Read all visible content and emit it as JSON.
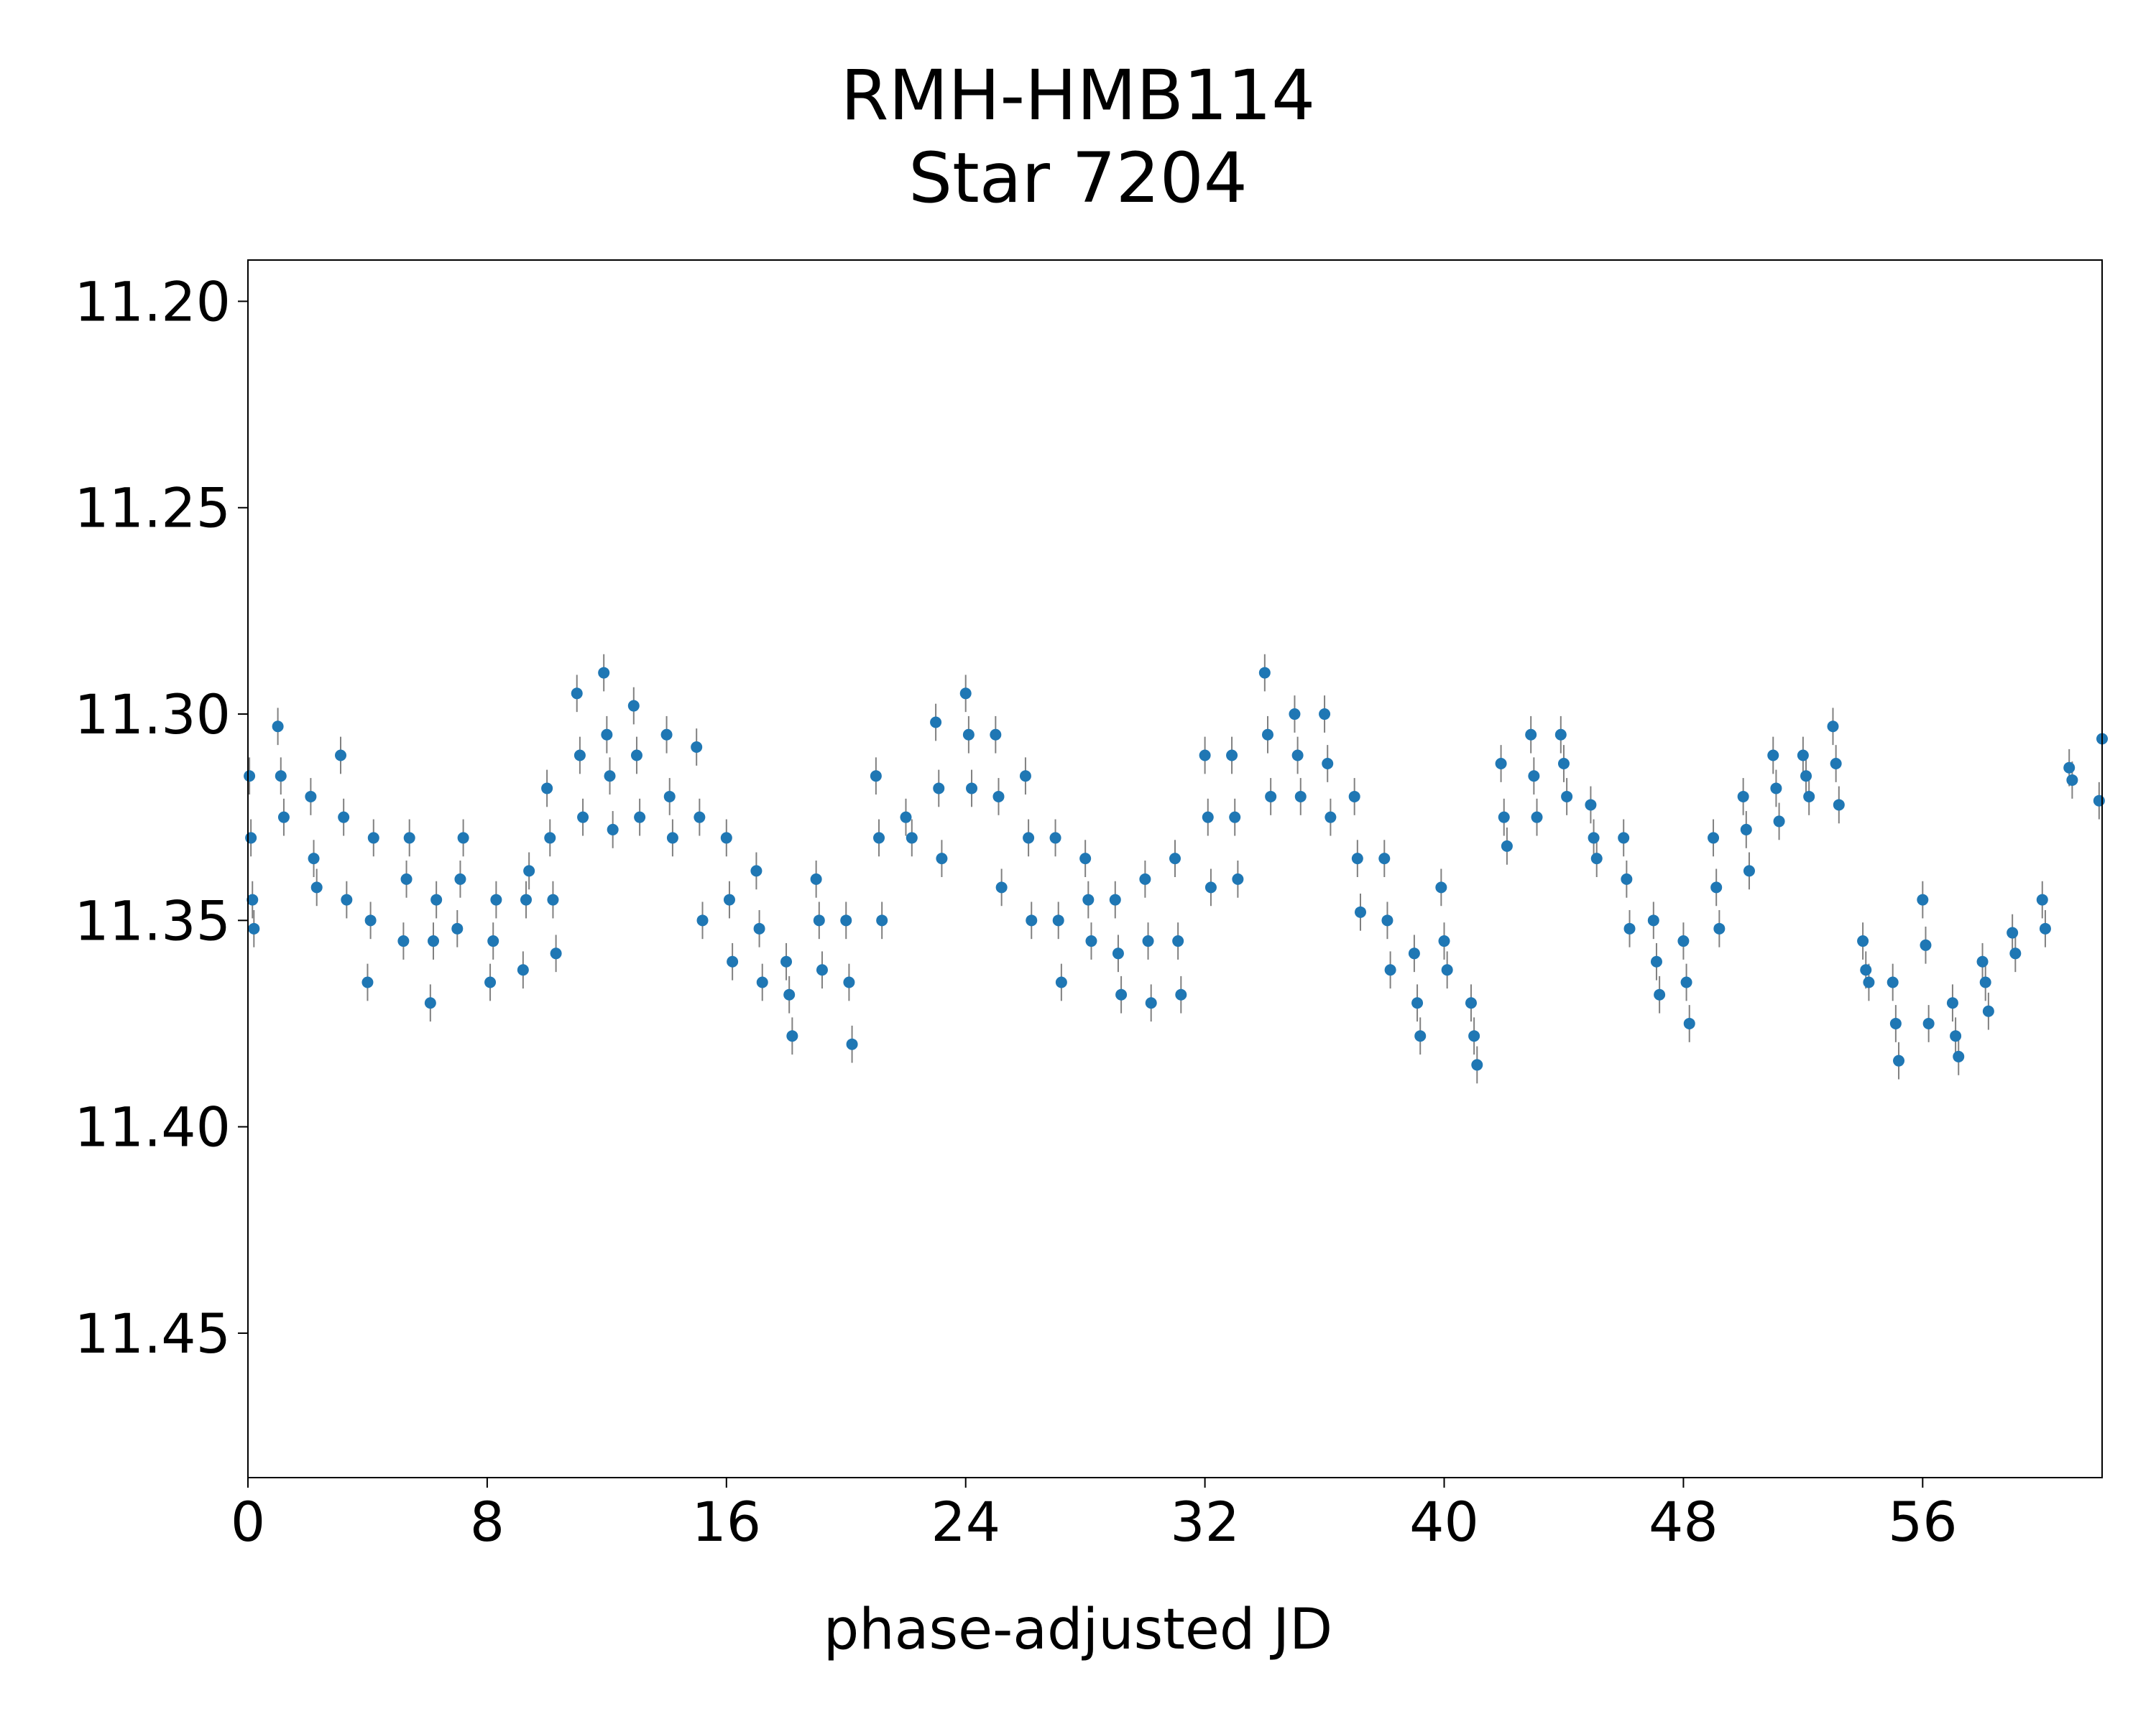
{
  "chart_data": {
    "type": "scatter",
    "title": "RMH-HMB114",
    "subtitle": "Star 7204",
    "xlabel": "phase-adjusted JD",
    "ylabel": "",
    "xlim": [
      0,
      62
    ],
    "ylim": [
      11.485,
      11.19
    ],
    "y_inverted": true,
    "xticks": [
      0,
      8,
      16,
      24,
      32,
      40,
      48,
      56
    ],
    "yticks": [
      11.2,
      11.25,
      11.3,
      11.35,
      11.4,
      11.45
    ],
    "ytick_labels": [
      "11.20",
      "11.25",
      "11.30",
      "11.35",
      "11.40",
      "11.45"
    ],
    "grid": false,
    "legend": "none",
    "marker_color": "#1f77b4",
    "errorbar_color": "#808080",
    "series": [
      {
        "points": [
          [
            0.05,
            11.315
          ],
          [
            0.1,
            11.33
          ],
          [
            0.15,
            11.345
          ],
          [
            0.2,
            11.352
          ],
          [
            1.0,
            11.303
          ],
          [
            1.1,
            11.315
          ],
          [
            1.2,
            11.325
          ],
          [
            2.1,
            11.32
          ],
          [
            2.2,
            11.335
          ],
          [
            2.3,
            11.342
          ],
          [
            3.1,
            11.31
          ],
          [
            3.2,
            11.325
          ],
          [
            3.3,
            11.345
          ],
          [
            4.0,
            11.365
          ],
          [
            4.1,
            11.35
          ],
          [
            4.2,
            11.33
          ],
          [
            5.2,
            11.355
          ],
          [
            5.3,
            11.34
          ],
          [
            5.4,
            11.33
          ],
          [
            6.1,
            11.37
          ],
          [
            6.2,
            11.355
          ],
          [
            6.3,
            11.345
          ],
          [
            7.0,
            11.352
          ],
          [
            7.1,
            11.34
          ],
          [
            7.2,
            11.33
          ],
          [
            8.1,
            11.365
          ],
          [
            8.2,
            11.355
          ],
          [
            8.3,
            11.345
          ],
          [
            9.2,
            11.362
          ],
          [
            9.3,
            11.345
          ],
          [
            9.4,
            11.338
          ],
          [
            10.0,
            11.318
          ],
          [
            10.1,
            11.33
          ],
          [
            10.2,
            11.345
          ],
          [
            10.3,
            11.358
          ],
          [
            11.0,
            11.295
          ],
          [
            11.1,
            11.31
          ],
          [
            11.2,
            11.325
          ],
          [
            11.9,
            11.29
          ],
          [
            12.0,
            11.305
          ],
          [
            12.1,
            11.315
          ],
          [
            12.2,
            11.328
          ],
          [
            12.9,
            11.298
          ],
          [
            13.0,
            11.31
          ],
          [
            13.1,
            11.325
          ],
          [
            14.0,
            11.305
          ],
          [
            14.1,
            11.32
          ],
          [
            14.2,
            11.33
          ],
          [
            15.0,
            11.308
          ],
          [
            15.1,
            11.325
          ],
          [
            15.2,
            11.35
          ],
          [
            16.0,
            11.33
          ],
          [
            16.1,
            11.345
          ],
          [
            16.2,
            11.36
          ],
          [
            17.0,
            11.338
          ],
          [
            17.1,
            11.352
          ],
          [
            17.2,
            11.365
          ],
          [
            18.0,
            11.36
          ],
          [
            18.1,
            11.368
          ],
          [
            18.2,
            11.378
          ],
          [
            19.0,
            11.34
          ],
          [
            19.1,
            11.35
          ],
          [
            19.2,
            11.362
          ],
          [
            20.0,
            11.35
          ],
          [
            20.1,
            11.365
          ],
          [
            20.2,
            11.38
          ],
          [
            21.0,
            11.315
          ],
          [
            21.1,
            11.33
          ],
          [
            21.2,
            11.35
          ],
          [
            22.0,
            11.325
          ],
          [
            22.2,
            11.33
          ],
          [
            23.0,
            11.302
          ],
          [
            23.1,
            11.318
          ],
          [
            23.2,
            11.335
          ],
          [
            24.0,
            11.295
          ],
          [
            24.1,
            11.305
          ],
          [
            24.2,
            11.318
          ],
          [
            25.0,
            11.305
          ],
          [
            25.1,
            11.32
          ],
          [
            25.2,
            11.342
          ],
          [
            26.0,
            11.315
          ],
          [
            26.1,
            11.33
          ],
          [
            26.2,
            11.35
          ],
          [
            27.0,
            11.33
          ],
          [
            27.1,
            11.35
          ],
          [
            27.2,
            11.365
          ],
          [
            28.0,
            11.335
          ],
          [
            28.1,
            11.345
          ],
          [
            28.2,
            11.355
          ],
          [
            29.0,
            11.345
          ],
          [
            29.1,
            11.358
          ],
          [
            29.2,
            11.368
          ],
          [
            30.0,
            11.34
          ],
          [
            30.1,
            11.355
          ],
          [
            30.2,
            11.37
          ],
          [
            31.0,
            11.335
          ],
          [
            31.1,
            11.355
          ],
          [
            31.2,
            11.368
          ],
          [
            32.0,
            11.31
          ],
          [
            32.1,
            11.325
          ],
          [
            32.2,
            11.342
          ],
          [
            32.9,
            11.31
          ],
          [
            33.0,
            11.325
          ],
          [
            33.1,
            11.34
          ],
          [
            34.0,
            11.29
          ],
          [
            34.1,
            11.305
          ],
          [
            34.2,
            11.32
          ],
          [
            35.0,
            11.3
          ],
          [
            35.1,
            11.31
          ],
          [
            35.2,
            11.32
          ],
          [
            36.0,
            11.3
          ],
          [
            36.1,
            11.312
          ],
          [
            36.2,
            11.325
          ],
          [
            37.0,
            11.32
          ],
          [
            37.1,
            11.335
          ],
          [
            37.2,
            11.348
          ],
          [
            38.0,
            11.335
          ],
          [
            38.1,
            11.35
          ],
          [
            38.2,
            11.362
          ],
          [
            39.0,
            11.358
          ],
          [
            39.1,
            11.37
          ],
          [
            39.2,
            11.378
          ],
          [
            39.9,
            11.342
          ],
          [
            40.0,
            11.355
          ],
          [
            40.1,
            11.362
          ],
          [
            40.9,
            11.37
          ],
          [
            41.0,
            11.378
          ],
          [
            41.1,
            11.385
          ],
          [
            41.9,
            11.312
          ],
          [
            42.0,
            11.325
          ],
          [
            42.1,
            11.332
          ],
          [
            42.9,
            11.305
          ],
          [
            43.0,
            11.315
          ],
          [
            43.1,
            11.325
          ],
          [
            43.9,
            11.305
          ],
          [
            44.0,
            11.312
          ],
          [
            44.1,
            11.32
          ],
          [
            44.9,
            11.322
          ],
          [
            45.0,
            11.33
          ],
          [
            45.1,
            11.335
          ],
          [
            46.0,
            11.33
          ],
          [
            46.1,
            11.34
          ],
          [
            46.2,
            11.352
          ],
          [
            47.0,
            11.35
          ],
          [
            47.1,
            11.36
          ],
          [
            47.2,
            11.368
          ],
          [
            48.0,
            11.355
          ],
          [
            48.1,
            11.365
          ],
          [
            48.2,
            11.375
          ],
          [
            49.0,
            11.33
          ],
          [
            49.1,
            11.342
          ],
          [
            49.2,
            11.352
          ],
          [
            50.0,
            11.32
          ],
          [
            50.1,
            11.328
          ],
          [
            50.2,
            11.338
          ],
          [
            51.0,
            11.31
          ],
          [
            51.1,
            11.318
          ],
          [
            51.2,
            11.326
          ],
          [
            52.0,
            11.31
          ],
          [
            52.1,
            11.315
          ],
          [
            52.2,
            11.32
          ],
          [
            53.0,
            11.303
          ],
          [
            53.1,
            11.312
          ],
          [
            53.2,
            11.322
          ],
          [
            54.0,
            11.355
          ],
          [
            54.1,
            11.362
          ],
          [
            54.2,
            11.365
          ],
          [
            55.0,
            11.365
          ],
          [
            55.1,
            11.375
          ],
          [
            55.2,
            11.384
          ],
          [
            56.0,
            11.345
          ],
          [
            56.1,
            11.356
          ],
          [
            56.2,
            11.375
          ],
          [
            57.0,
            11.37
          ],
          [
            57.1,
            11.378
          ],
          [
            57.2,
            11.383
          ],
          [
            58.0,
            11.36
          ],
          [
            58.1,
            11.365
          ],
          [
            58.2,
            11.372
          ],
          [
            59.0,
            11.353
          ],
          [
            59.1,
            11.358
          ],
          [
            60.0,
            11.345
          ],
          [
            60.1,
            11.352
          ],
          [
            60.9,
            11.313
          ],
          [
            61.0,
            11.316
          ],
          [
            61.9,
            11.321
          ],
          [
            62.0,
            11.306
          ]
        ]
      }
    ]
  }
}
